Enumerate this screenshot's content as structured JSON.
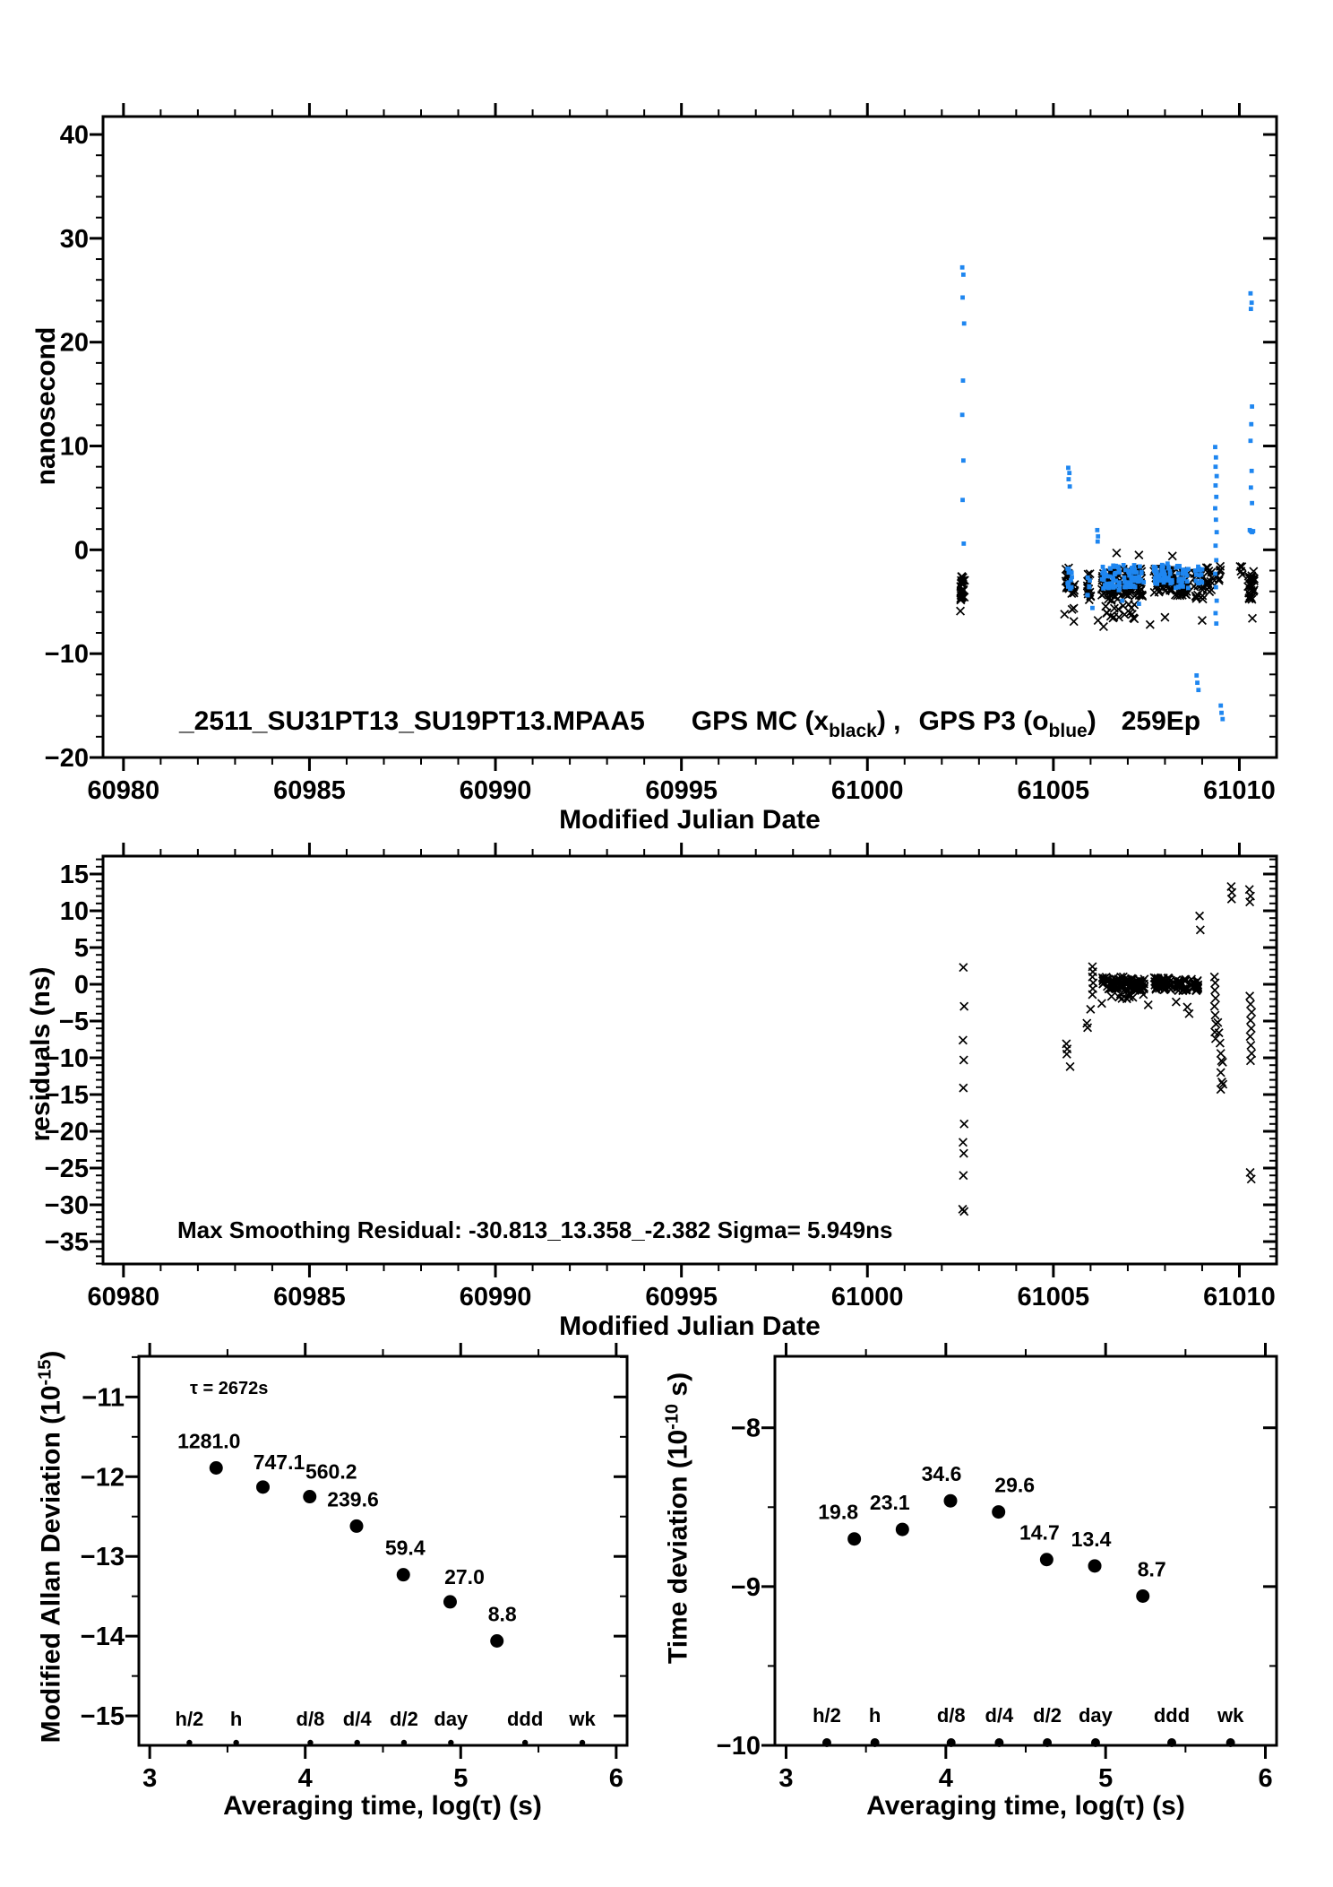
{
  "colors": {
    "black": "#000000",
    "blue": "#1e86f0",
    "red": "#ff0000",
    "background": "#ffffff"
  },
  "top": {
    "ylabel": "nanosecond",
    "xlabel": "Modified Julian Date",
    "title": {
      "file": "_2511_SU31PT13_SU19PT13.MPAA5",
      "s1a": "GPS MC (x",
      "s1sub": "black",
      "s1b": ") ,",
      "s2a": "GPS P3 (o",
      "s2sub": "blue",
      "s2b": ")",
      "epochs": "259Ep"
    }
  },
  "mid": {
    "ylabel": "residuals (ns)",
    "xlabel": "Modified Julian Date",
    "note": "Max Smoothing Residual: -30.813_13.358_-2.382  Sigma= 5.949ns"
  },
  "bl": {
    "ylabel_pre": "Modified Allan Deviation (10",
    "ylabel_sup": "-15",
    "ylabel_post": ")",
    "xlabel": "Averaging time, log(τ) (s)",
    "tau_note": "τ = 2672s"
  },
  "br": {
    "ylabel_pre": "Time deviation (10",
    "ylabel_sup": "-10",
    "ylabel_post": " s)",
    "xlabel": "Averaging time, log(τ) (s)"
  },
  "chart_data": [
    {
      "id": "top",
      "type": "scatter",
      "xlabel": "Modified Julian Date",
      "ylabel": "nanosecond",
      "xlim": [
        60979.45,
        61011.0
      ],
      "ylim": [
        -20,
        41.73
      ],
      "xticks": {
        "major": [
          60980,
          60985,
          60990,
          60995,
          61000,
          61005,
          61010
        ],
        "minor_step": 1
      },
      "yticks": {
        "major": [
          40,
          30,
          20,
          10,
          0,
          -10,
          -20
        ],
        "minor_step": 2
      },
      "series": [
        {
          "name": "GPS MC",
          "marker": "x",
          "color": "#000000",
          "points": [
            [
              61005.3,
              -6.2
            ],
            [
              61005.55,
              -6.9
            ],
            [
              61006.2,
              -6.8
            ],
            [
              61006.35,
              -7.4
            ],
            [
              61007.6,
              -7.2
            ],
            [
              61008.0,
              -6.5
            ],
            [
              61009.0,
              -6.8
            ],
            [
              61010.35,
              -6.6
            ],
            [
              61002.5,
              -5.9
            ],
            [
              61006.7,
              -0.3
            ],
            [
              61007.3,
              -0.5
            ],
            [
              61008.2,
              -0.6
            ]
          ],
          "clusters": [
            [
              61002.56,
              0.055,
              -3.6,
              1.25,
              28
            ],
            [
              61005.38,
              0.055,
              -2.6,
              1.2,
              16
            ],
            [
              61005.52,
              0.05,
              -4.6,
              1.4,
              10
            ],
            [
              61005.95,
              0.05,
              -3.8,
              1.5,
              12
            ],
            [
              61006.55,
              0.25,
              -3.4,
              1.5,
              55
            ],
            [
              61007.15,
              0.28,
              -3.1,
              1.4,
              55
            ],
            [
              61006.85,
              0.45,
              -5.9,
              0.8,
              18
            ],
            [
              61007.95,
              0.25,
              -2.9,
              1.2,
              45
            ],
            [
              61008.45,
              0.18,
              -3.2,
              1.3,
              35
            ],
            [
              61008.9,
              0.12,
              -3.3,
              1.5,
              22
            ],
            [
              61009.2,
              0.1,
              -2.9,
              1.2,
              15
            ],
            [
              61009.45,
              0.05,
              -2.4,
              0.9,
              6
            ],
            [
              61010.32,
              0.1,
              -3.3,
              1.5,
              26
            ],
            [
              61010.05,
              0.03,
              -2.0,
              0.6,
              4
            ]
          ]
        },
        {
          "name": "GPS P3",
          "marker": "square",
          "color": "#1e86f0",
          "points": [
            [
              61002.55,
              27.2
            ],
            [
              61002.58,
              26.5
            ],
            [
              61002.56,
              24.3
            ],
            [
              61002.6,
              21.8
            ],
            [
              61002.57,
              16.3
            ],
            [
              61002.55,
              13.0
            ],
            [
              61002.58,
              8.6
            ],
            [
              61002.56,
              4.8
            ],
            [
              61002.59,
              0.6
            ],
            [
              61005.4,
              7.9
            ],
            [
              61005.43,
              7.4
            ],
            [
              61005.41,
              6.8
            ],
            [
              61005.44,
              6.1
            ],
            [
              61006.18,
              1.9
            ],
            [
              61006.2,
              1.3
            ],
            [
              61006.19,
              0.8
            ],
            [
              61009.35,
              9.9
            ],
            [
              61009.37,
              8.9
            ],
            [
              61009.36,
              8.0
            ],
            [
              61009.39,
              7.1
            ],
            [
              61009.36,
              6.2
            ],
            [
              61009.38,
              5.1
            ],
            [
              61009.35,
              4.0
            ],
            [
              61009.37,
              2.9
            ],
            [
              61009.39,
              1.7
            ],
            [
              61009.36,
              0.4
            ],
            [
              61009.38,
              -1.0
            ],
            [
              61009.35,
              -2.3
            ],
            [
              61009.37,
              -3.6
            ],
            [
              61009.39,
              -4.9
            ],
            [
              61009.36,
              -6.1
            ],
            [
              61009.38,
              -7.1
            ],
            [
              61008.85,
              -12.1
            ],
            [
              61008.87,
              -12.8
            ],
            [
              61008.9,
              -13.5
            ],
            [
              61009.5,
              -15.0
            ],
            [
              61009.52,
              -15.7
            ],
            [
              61009.55,
              -16.3
            ],
            [
              61010.3,
              24.7
            ],
            [
              61010.33,
              23.8
            ],
            [
              61010.31,
              23.2
            ],
            [
              61010.34,
              13.8
            ],
            [
              61010.32,
              12.1
            ],
            [
              61010.3,
              10.5
            ],
            [
              61010.33,
              7.6
            ],
            [
              61010.31,
              6.0
            ],
            [
              61010.34,
              4.5
            ],
            [
              61010.28,
              1.9
            ],
            [
              61010.31,
              1.8
            ],
            [
              61010.34,
              1.7
            ],
            [
              61010.37,
              1.8
            ],
            [
              61006.85,
              -4.9
            ],
            [
              61007.3,
              -5.2
            ],
            [
              61006.05,
              -5.6
            ]
          ],
          "clusters": [
            [
              61005.45,
              0.08,
              -2.8,
              1.0,
              12
            ],
            [
              61006.55,
              0.25,
              -2.7,
              1.2,
              45
            ],
            [
              61007.15,
              0.28,
              -2.5,
              1.1,
              45
            ],
            [
              61007.95,
              0.25,
              -2.3,
              1.0,
              40
            ],
            [
              61008.45,
              0.18,
              -2.6,
              1.1,
              28
            ],
            [
              61008.9,
              0.12,
              -2.6,
              1.0,
              14
            ],
            [
              61005.95,
              0.04,
              -3.2,
              1.2,
              6
            ]
          ]
        }
      ]
    },
    {
      "id": "mid",
      "type": "scatter",
      "xlabel": "Modified Julian Date",
      "ylabel": "residuals (ns)",
      "xlim": [
        60979.45,
        61011.0
      ],
      "ylim": [
        -38.05,
        17.44
      ],
      "xticks": {
        "major": [
          60980,
          60985,
          60990,
          60995,
          61000,
          61005,
          61010
        ],
        "minor_step": 1
      },
      "yticks": {
        "major": [
          15,
          10,
          5,
          0,
          -5,
          -10,
          -15,
          -20,
          -25,
          -30,
          -35
        ],
        "minor_step": 1
      },
      "series": [
        {
          "name": "residuals",
          "marker": "x",
          "color": "#000000",
          "points": [
            [
              61002.58,
              2.3
            ],
            [
              61002.6,
              -3.0
            ],
            [
              61002.57,
              -7.6
            ],
            [
              61002.59,
              -10.3
            ],
            [
              61002.58,
              -14.1
            ],
            [
              61002.6,
              -19.0
            ],
            [
              61002.57,
              -21.5
            ],
            [
              61002.59,
              -23.0
            ],
            [
              61002.58,
              -26.0
            ],
            [
              61002.56,
              -30.6
            ],
            [
              61002.6,
              -30.9
            ],
            [
              61005.35,
              -8.1
            ],
            [
              61005.37,
              -8.8
            ],
            [
              61005.36,
              -9.5
            ],
            [
              61005.45,
              -11.2
            ],
            [
              61005.9,
              -5.3
            ],
            [
              61005.92,
              -5.9
            ],
            [
              61006.05,
              2.4
            ],
            [
              61006.06,
              1.7
            ],
            [
              61006.05,
              1.0
            ],
            [
              61006.07,
              0.2
            ],
            [
              61006.06,
              -0.6
            ],
            [
              61006.05,
              -1.4
            ],
            [
              61006.0,
              -3.4
            ],
            [
              61008.93,
              9.3
            ],
            [
              61008.95,
              7.4
            ],
            [
              61009.78,
              13.3
            ],
            [
              61009.8,
              12.5
            ],
            [
              61009.79,
              11.6
            ],
            [
              61009.33,
              1.0
            ],
            [
              61009.35,
              0.2
            ],
            [
              61009.34,
              -0.8
            ],
            [
              61009.36,
              -1.9
            ],
            [
              61009.33,
              -3.0
            ],
            [
              61009.35,
              -4.2
            ],
            [
              61009.37,
              -5.4
            ],
            [
              61009.34,
              -6.5
            ],
            [
              61009.36,
              -7.4
            ],
            [
              61009.42,
              -5.2
            ],
            [
              61009.45,
              -6.6
            ],
            [
              61009.48,
              -8.0
            ],
            [
              61009.5,
              -9.4
            ],
            [
              61009.52,
              -10.4
            ],
            [
              61009.55,
              -10.6
            ],
            [
              61009.5,
              -12.0
            ],
            [
              61009.53,
              -13.3
            ],
            [
              61009.56,
              -13.6
            ],
            [
              61009.5,
              -14.3
            ],
            [
              61010.28,
              -1.6
            ],
            [
              61010.3,
              -2.7
            ],
            [
              61010.33,
              -3.8
            ],
            [
              61010.3,
              -4.9
            ],
            [
              61010.32,
              -6.0
            ],
            [
              61010.29,
              -7.1
            ],
            [
              61010.31,
              -8.3
            ],
            [
              61010.33,
              -9.4
            ],
            [
              61010.3,
              -10.4
            ],
            [
              61010.29,
              -25.6
            ],
            [
              61010.32,
              -26.5
            ],
            [
              61010.27,
              12.9
            ],
            [
              61010.3,
              12.0
            ],
            [
              61010.28,
              11.2
            ],
            [
              61006.3,
              -2.6
            ],
            [
              61007.55,
              -2.8
            ],
            [
              61008.3,
              -2.4
            ],
            [
              61008.6,
              -3.1
            ],
            [
              61008.65,
              -4.0
            ]
          ],
          "clusters": [
            [
              61006.6,
              0.28,
              0.2,
              0.85,
              55
            ],
            [
              61007.2,
              0.25,
              0.0,
              0.85,
              50
            ],
            [
              61007.95,
              0.25,
              0.1,
              0.85,
              50
            ],
            [
              61008.45,
              0.15,
              -0.1,
              0.8,
              30
            ],
            [
              61008.8,
              0.1,
              -0.2,
              0.9,
              18
            ],
            [
              61007.0,
              0.45,
              -1.6,
              0.4,
              10
            ]
          ]
        }
      ]
    },
    {
      "id": "bl",
      "type": "scatter_labeled",
      "title": "Modified Allan Deviation",
      "xlabel": "Averaging time, log(τ) (s)",
      "ylabel": "Modified Allan Deviation (10^-15)",
      "xlim": [
        2.93,
        6.07
      ],
      "ylim": [
        -15.37,
        -10.49
      ],
      "xticks": {
        "major": [
          3,
          4,
          5,
          6
        ],
        "minor_step": 0.5
      },
      "yticks": {
        "major": [
          -11,
          -12,
          -13,
          -14,
          -15
        ],
        "minor_step": 0.5
      },
      "x": [
        3.427,
        3.728,
        4.029,
        4.33,
        4.631,
        4.932,
        5.233
      ],
      "y": [
        -11.89,
        -12.13,
        -12.25,
        -12.62,
        -13.23,
        -13.57,
        -14.06
      ],
      "labels": [
        "1281.0",
        "747.1",
        "560.2",
        "239.6",
        "59.4",
        "27.0",
        "8.8"
      ],
      "label_dx": [
        -8,
        18,
        24,
        -4,
        2,
        16,
        6
      ],
      "label_dy": [
        -22,
        -20,
        -20,
        -22,
        -22,
        -20,
        -22
      ],
      "tau_note": "τ = 2672s",
      "time_marks": {
        "labels": [
          "h/2",
          "h",
          "d/8",
          "d/4",
          "d/2",
          "day",
          "ddd",
          "wk"
        ],
        "x": [
          3.255,
          3.556,
          4.033,
          4.334,
          4.635,
          4.937,
          5.414,
          5.782
        ]
      }
    },
    {
      "id": "br",
      "type": "scatter_labeled",
      "title": "Time deviation",
      "xlabel": "Averaging time, log(τ) (s)",
      "ylabel": "Time deviation (10^-10 s)",
      "xlim": [
        2.93,
        6.07
      ],
      "ylim": [
        -10,
        -7.55
      ],
      "xticks": {
        "major": [
          3,
          4,
          5,
          6
        ],
        "minor_step": 0.5
      },
      "yticks": {
        "major": [
          -8,
          -9,
          -10
        ],
        "minor_step": 0.5
      },
      "x": [
        3.427,
        3.728,
        4.029,
        4.33,
        4.631,
        4.932,
        5.233
      ],
      "y": [
        -8.7,
        -8.64,
        -8.46,
        -8.53,
        -8.83,
        -8.87,
        -9.06
      ],
      "labels": [
        "19.8",
        "23.1",
        "34.6",
        "29.6",
        "14.7",
        "13.4",
        "8.7"
      ],
      "label_dx": [
        -18,
        -14,
        -10,
        18,
        -8,
        -4,
        10
      ],
      "label_dy": [
        -22,
        -22,
        -22,
        -22,
        -22,
        -22,
        -22
      ],
      "time_marks": {
        "labels": [
          "h/2",
          "h",
          "d/8",
          "d/4",
          "d/2",
          "day",
          "ddd",
          "wk"
        ],
        "x": [
          3.255,
          3.556,
          4.033,
          4.334,
          4.635,
          4.937,
          5.414,
          5.782
        ]
      }
    }
  ]
}
